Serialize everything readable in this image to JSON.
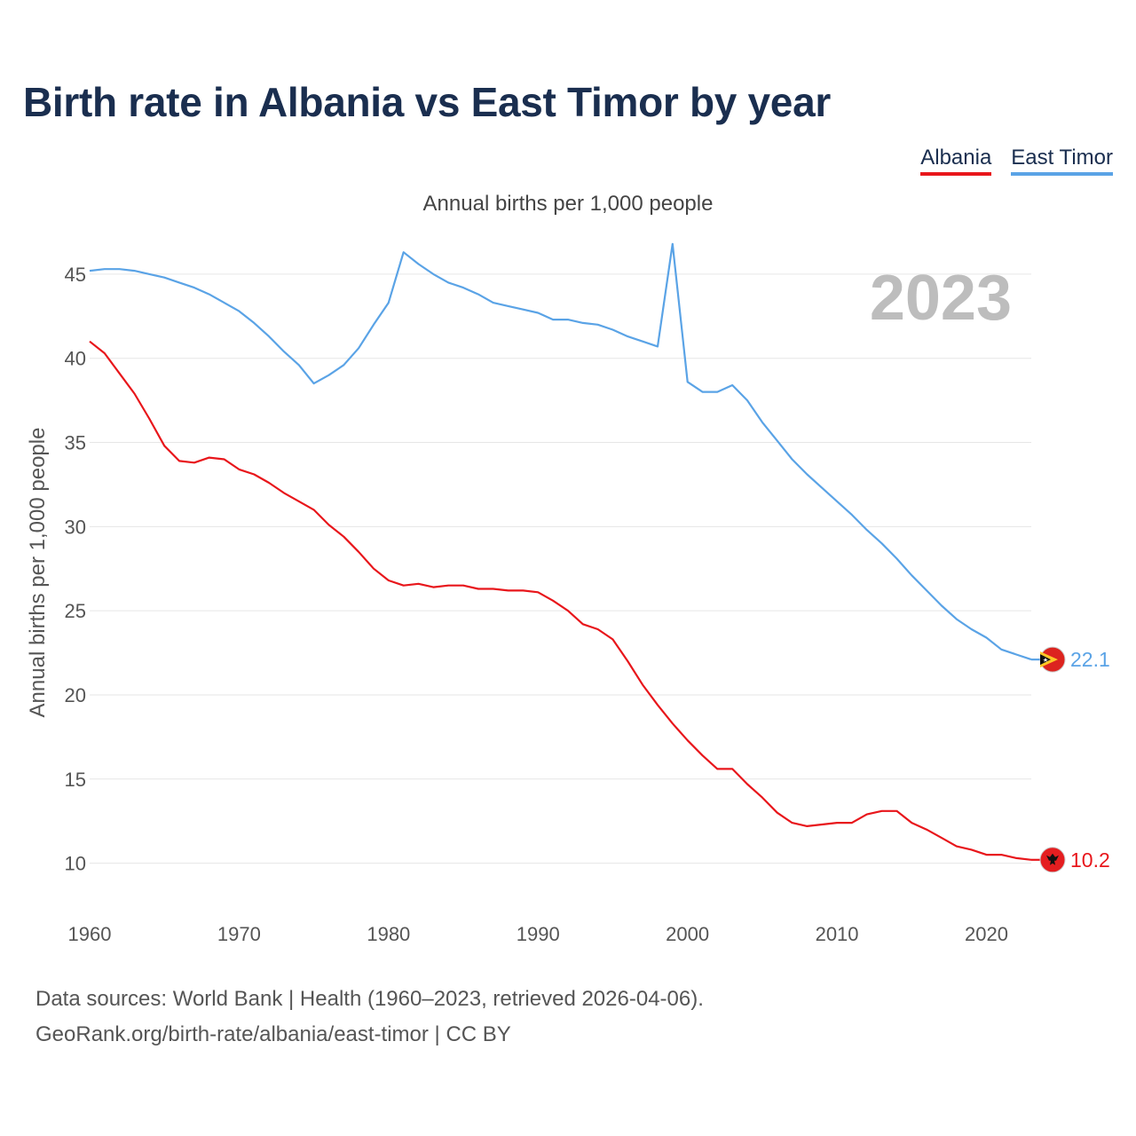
{
  "title": "Birth rate in Albania vs East Timor by year",
  "legend": [
    {
      "label": "Albania",
      "color": "#e8161b"
    },
    {
      "label": "East Timor",
      "color": "#5aa3e6"
    }
  ],
  "source": {
    "line1": "Data sources: World Bank | Health (1960–2023, retrieved 2026-04-06).",
    "line2": "GeoRank.org/birth-rate/albania/east-timor | CC BY"
  },
  "chart_data": {
    "type": "line",
    "title": "Annual births per 1,000 people",
    "xlabel": "",
    "ylabel": "Annual births per 1,000 people",
    "year_label": "2023",
    "xlim": [
      1960,
      2023
    ],
    "ylim": [
      7.5,
      48
    ],
    "x_ticks": [
      1960,
      1970,
      1980,
      1990,
      2000,
      2010,
      2020
    ],
    "y_ticks": [
      10,
      15,
      20,
      25,
      30,
      35,
      40,
      45
    ],
    "grid": true,
    "x": [
      1960,
      1961,
      1962,
      1963,
      1964,
      1965,
      1966,
      1967,
      1968,
      1969,
      1970,
      1971,
      1972,
      1973,
      1974,
      1975,
      1976,
      1977,
      1978,
      1979,
      1980,
      1981,
      1982,
      1983,
      1984,
      1985,
      1986,
      1987,
      1988,
      1989,
      1990,
      1991,
      1992,
      1993,
      1994,
      1995,
      1996,
      1997,
      1998,
      1999,
      2000,
      2001,
      2002,
      2003,
      2004,
      2005,
      2006,
      2007,
      2008,
      2009,
      2010,
      2011,
      2012,
      2013,
      2014,
      2015,
      2016,
      2017,
      2018,
      2019,
      2020,
      2021,
      2022,
      2023
    ],
    "series": [
      {
        "name": "Albania",
        "color": "#e8161b",
        "end_label": "10.2",
        "values": [
          41.0,
          40.3,
          39.1,
          37.9,
          36.4,
          34.8,
          33.9,
          33.8,
          34.1,
          34.0,
          33.4,
          33.1,
          32.6,
          32.0,
          31.5,
          31.0,
          30.1,
          29.4,
          28.5,
          27.5,
          26.8,
          26.5,
          26.6,
          26.4,
          26.5,
          26.5,
          26.3,
          26.3,
          26.2,
          26.2,
          26.1,
          25.6,
          25.0,
          24.2,
          23.9,
          23.3,
          22.0,
          20.6,
          19.4,
          18.3,
          17.3,
          16.4,
          15.6,
          15.6,
          14.7,
          13.9,
          13.0,
          12.4,
          12.2,
          12.3,
          12.4,
          12.4,
          12.9,
          13.1,
          13.1,
          12.4,
          12.0,
          11.5,
          11.0,
          10.8,
          10.5,
          10.5,
          10.3,
          10.2
        ]
      },
      {
        "name": "East Timor",
        "color": "#5aa3e6",
        "end_label": "22.1",
        "values": [
          45.2,
          45.3,
          45.3,
          45.2,
          45.0,
          44.8,
          44.5,
          44.2,
          43.8,
          43.3,
          42.8,
          42.1,
          41.3,
          40.4,
          39.6,
          38.5,
          39.0,
          39.6,
          40.6,
          42.0,
          43.3,
          46.3,
          45.6,
          45.0,
          44.5,
          44.2,
          43.8,
          43.3,
          43.1,
          42.9,
          42.7,
          42.3,
          42.3,
          42.1,
          42.0,
          41.7,
          41.3,
          41.0,
          40.7,
          46.8,
          38.6,
          38.0,
          38.0,
          38.4,
          37.5,
          36.2,
          35.1,
          34.0,
          33.1,
          32.3,
          31.5,
          30.7,
          29.8,
          29.0,
          28.1,
          27.1,
          26.2,
          25.3,
          24.5,
          23.9,
          23.4,
          22.7,
          22.4,
          22.1
        ]
      }
    ]
  }
}
